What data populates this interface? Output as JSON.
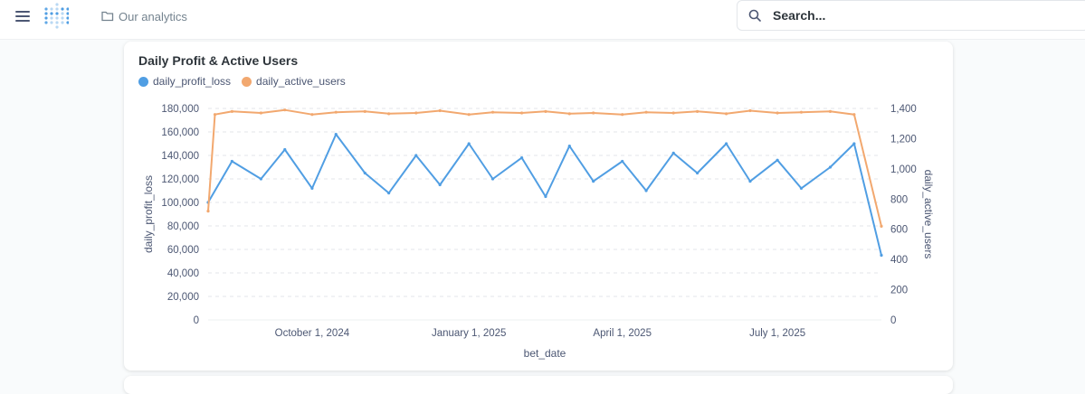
{
  "header": {
    "collection_label": "Our analytics",
    "search_placeholder": "Search..."
  },
  "card": {
    "title": "Daily Profit & Active Users"
  },
  "chart_data": {
    "type": "line",
    "title": "Daily Profit & Active Users",
    "xlabel": "bet_date",
    "ylabel": "daily_profit_loss",
    "y2label": "daily_active_users",
    "x_range": [
      "2024-08-01",
      "2025-08-31"
    ],
    "x_ticks": [
      "October 1, 2024",
      "January 1, 2025",
      "April 1, 2025",
      "July 1, 2025"
    ],
    "ylim": [
      0,
      180000
    ],
    "y_ticks": [
      "0",
      "20,000",
      "40,000",
      "60,000",
      "80,000",
      "100,000",
      "120,000",
      "140,000",
      "160,000",
      "180,000"
    ],
    "y2lim": [
      0,
      1400
    ],
    "y2_ticks": [
      "0",
      "200",
      "400",
      "600",
      "800",
      "1,000",
      "1,200",
      "1,400"
    ],
    "legend_position": "top-left",
    "grid": "horizontal dashed",
    "series": [
      {
        "name": "daily_profit_loss",
        "axis": "left",
        "color": "#509ee3",
        "x": [
          "2024-08-01",
          "2024-08-15",
          "2024-09-01",
          "2024-09-15",
          "2024-10-01",
          "2024-10-15",
          "2024-11-01",
          "2024-11-15",
          "2024-12-01",
          "2024-12-15",
          "2025-01-01",
          "2025-01-15",
          "2025-02-01",
          "2025-02-15",
          "2025-03-01",
          "2025-03-15",
          "2025-04-01",
          "2025-04-15",
          "2025-05-01",
          "2025-05-15",
          "2025-06-01",
          "2025-06-15",
          "2025-07-01",
          "2025-07-15",
          "2025-08-01",
          "2025-08-15",
          "2025-08-31"
        ],
        "values": [
          100000,
          135000,
          120000,
          145000,
          112000,
          158000,
          125000,
          108000,
          140000,
          115000,
          150000,
          120000,
          138000,
          105000,
          148000,
          118000,
          135000,
          110000,
          142000,
          125000,
          150000,
          118000,
          136000,
          112000,
          130000,
          150000,
          55000
        ]
      },
      {
        "name": "daily_active_users",
        "axis": "right",
        "color": "#f2a86f",
        "x": [
          "2024-08-01",
          "2024-08-05",
          "2024-08-15",
          "2024-09-01",
          "2024-09-15",
          "2024-10-01",
          "2024-10-15",
          "2024-11-01",
          "2024-11-15",
          "2024-12-01",
          "2024-12-15",
          "2025-01-01",
          "2025-01-15",
          "2025-02-01",
          "2025-02-15",
          "2025-03-01",
          "2025-03-15",
          "2025-04-01",
          "2025-04-15",
          "2025-05-01",
          "2025-05-15",
          "2025-06-01",
          "2025-06-15",
          "2025-07-01",
          "2025-07-15",
          "2025-08-01",
          "2025-08-15",
          "2025-08-31"
        ],
        "values": [
          720,
          1360,
          1380,
          1370,
          1390,
          1360,
          1375,
          1380,
          1365,
          1370,
          1385,
          1360,
          1375,
          1370,
          1380,
          1365,
          1370,
          1360,
          1375,
          1370,
          1380,
          1365,
          1385,
          1370,
          1375,
          1380,
          1360,
          620
        ]
      }
    ]
  }
}
